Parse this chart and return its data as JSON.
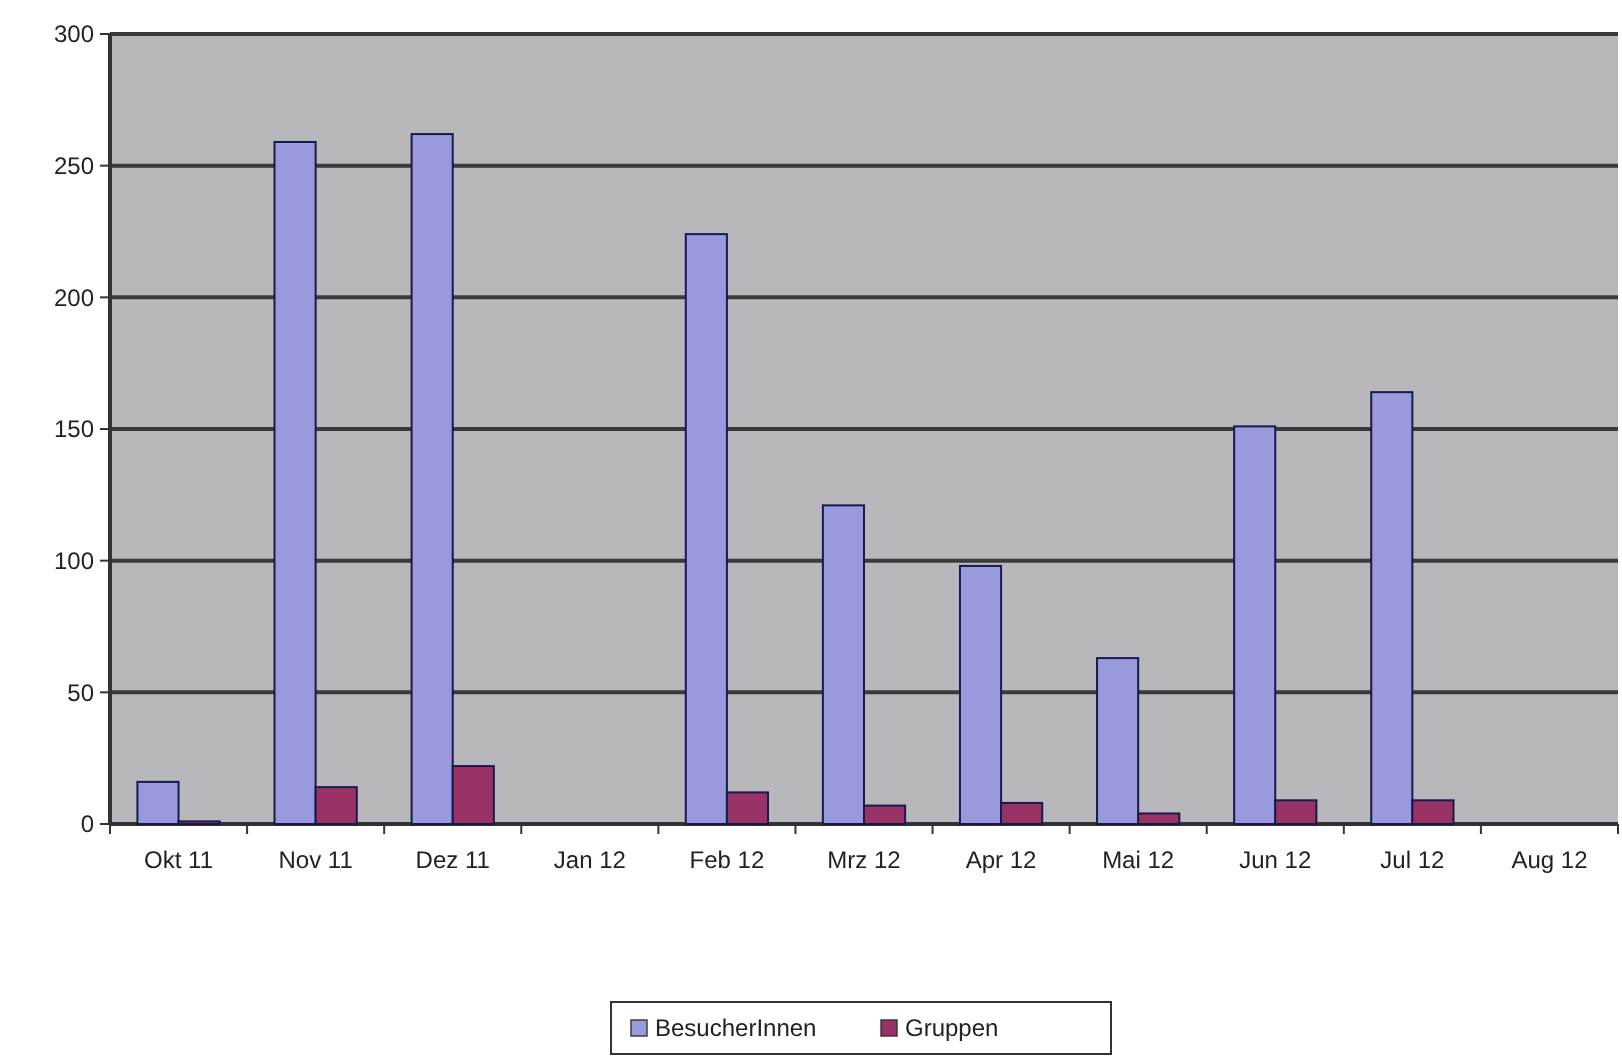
{
  "chart_data": {
    "type": "bar",
    "categories": [
      "Okt 11",
      "Nov 11",
      "Dez 11",
      "Jan 12",
      "Feb 12",
      "Mrz 12",
      "Apr 12",
      "Mai 12",
      "Jun 12",
      "Jul 12",
      "Aug 12"
    ],
    "series": [
      {
        "name": "BesucherInnen",
        "color": "#9999dd",
        "values": [
          16,
          259,
          262,
          null,
          224,
          121,
          98,
          63,
          151,
          164,
          null
        ]
      },
      {
        "name": "Gruppen",
        "color": "#993366",
        "values": [
          1,
          14,
          22,
          null,
          12,
          7,
          8,
          4,
          9,
          9,
          null
        ]
      }
    ],
    "ylim": [
      0,
      300
    ],
    "yticks": [
      0,
      50,
      100,
      150,
      200,
      250,
      300
    ],
    "grid": "y",
    "legend": "bottom"
  }
}
